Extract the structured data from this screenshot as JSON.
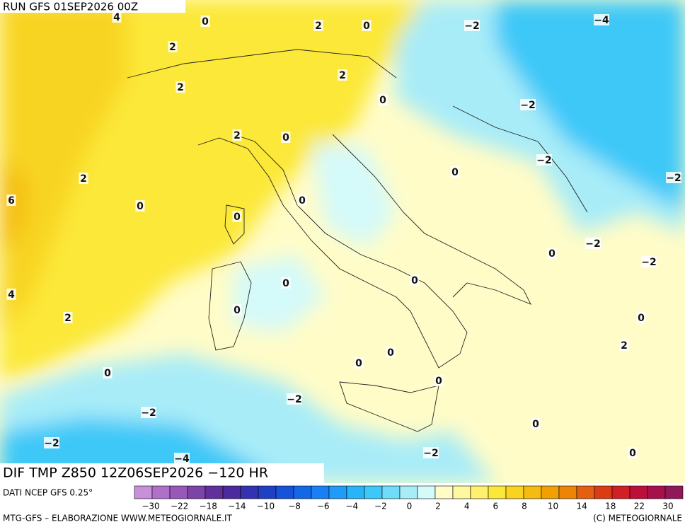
{
  "header": {
    "run": "RUN GFS 01SEP2026 00Z"
  },
  "map": {
    "title": "DIF TMP Z850 12Z06SEP2026 −120 HR",
    "contour_labels": [
      "4",
      "0",
      "2",
      "0",
      "−2",
      "−4",
      "2",
      "2",
      "2",
      "0",
      "−2",
      "2",
      "0",
      "−2",
      "0",
      "2",
      "−2",
      "6",
      "0",
      "0",
      "0",
      "−2",
      "0",
      "−2",
      "0",
      "0",
      "4",
      "0",
      "2",
      "0",
      "2",
      "0",
      "0",
      "0",
      "0",
      "−2",
      "−2",
      "0",
      "−2",
      "−2",
      "0",
      "−4"
    ]
  },
  "colorbar": {
    "source": "DATI NCEP GFS 0.25°",
    "colors": [
      "#c890d8",
      "#b070c8",
      "#9858b8",
      "#7c44a8",
      "#62309a",
      "#4a2a9c",
      "#3432b0",
      "#2040c4",
      "#1852d8",
      "#1468e8",
      "#1880f4",
      "#209cf8",
      "#28b4f8",
      "#3cc8f8",
      "#70dcf8",
      "#a8ecf8",
      "#d4fafa",
      "#fffcc8",
      "#fff8a0",
      "#fff070",
      "#fce838",
      "#f8d420",
      "#f4bc10",
      "#f0a000",
      "#ec8408",
      "#e46010",
      "#dc3c14",
      "#d02024",
      "#bc1038",
      "#a8104c",
      "#901858"
    ],
    "labels": [
      "−30",
      "−22",
      "−18",
      "−14",
      "−10",
      "−8",
      "−6",
      "−4",
      "−2",
      "0",
      "2",
      "4",
      "6",
      "8",
      "10",
      "14",
      "18",
      "22",
      "30"
    ]
  },
  "footer": {
    "left": "MTG-GFS – ELABORAZIONE WWW.METEOGIORNALE.IT",
    "right": "(C) METEOGIORNALE"
  }
}
